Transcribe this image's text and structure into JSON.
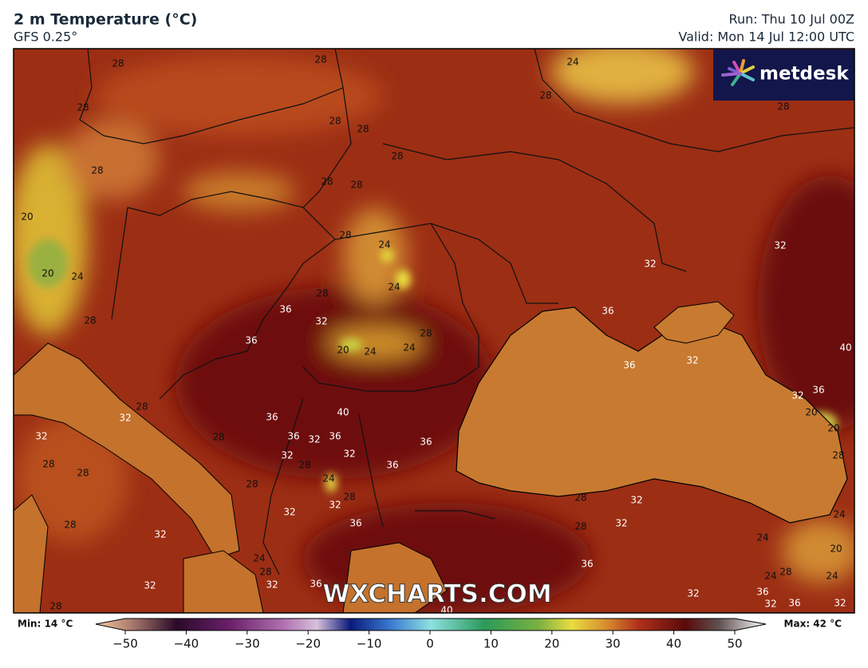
{
  "header": {
    "title": "2 m Temperature (°C)",
    "subtitle": "GFS 0.25°",
    "run": "Run: Thu 10 Jul 00Z",
    "valid": "Valid: Mon 14 Jul 12:00 UTC"
  },
  "logo": "metdesk",
  "watermark": "WXCHARTS.COM",
  "map": {
    "contour_labels": [
      28,
      28,
      24,
      28,
      28,
      28,
      28,
      28,
      28,
      28,
      28,
      28,
      20,
      28,
      24,
      20,
      24,
      24,
      32,
      32,
      28,
      36,
      32,
      36,
      28,
      36,
      28,
      20,
      24,
      24,
      36,
      32,
      40,
      32,
      36,
      28,
      32,
      36,
      40,
      20,
      20,
      32,
      36,
      32,
      36,
      36,
      32,
      32,
      28,
      28,
      28,
      28,
      36,
      28,
      24,
      28,
      28,
      32,
      28,
      32,
      32,
      36,
      32,
      28,
      24,
      32,
      28,
      24,
      20,
      24,
      36,
      28,
      32,
      32,
      24,
      28,
      24,
      36,
      32,
      36,
      36,
      32,
      32,
      28,
      40
    ]
  },
  "colorbar": {
    "min_label": "Min: 14 °C",
    "max_label": "Max: 42 °C",
    "ticks": [
      {
        "value": -50,
        "label": "−50"
      },
      {
        "value": -40,
        "label": "−40"
      },
      {
        "value": -30,
        "label": "−30"
      },
      {
        "value": -20,
        "label": "−20"
      },
      {
        "value": -10,
        "label": "−10"
      },
      0,
      10,
      20,
      30,
      40,
      50
    ]
  }
}
